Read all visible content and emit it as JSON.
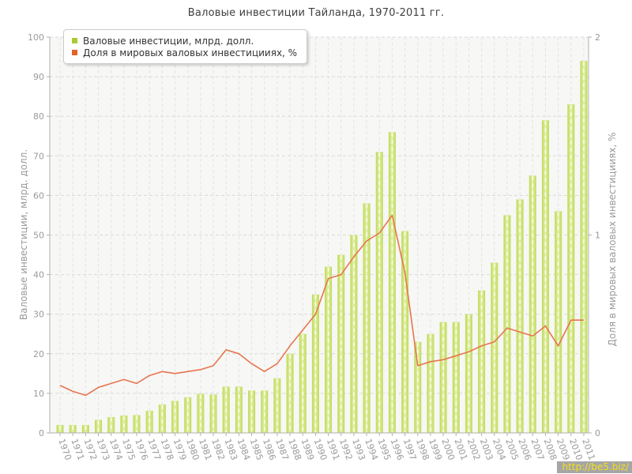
{
  "page": {
    "title": "Валовые инвестиции Тайланда, 1970-2011 гг.",
    "watermark": "http://be5.biz/"
  },
  "legend": {
    "position": "top-left",
    "items": [
      {
        "label": "Валовые инвестиции, млрд. долл.",
        "marker_color": "#a8cc30"
      },
      {
        "label": "Доля в мировых валовых инвестицииях, %",
        "marker_color": "#e2622b"
      }
    ]
  },
  "chart_data": {
    "type": "bar",
    "title": "Валовые инвестиции Тайланда, 1970-2011 гг.",
    "grid": "dashed",
    "categories": [
      "1970",
      "1971",
      "1972",
      "1973",
      "1974",
      "1975",
      "1976",
      "1977",
      "1978",
      "1979",
      "1980",
      "1981",
      "1982",
      "1983",
      "1984",
      "1985",
      "1986",
      "1987",
      "1988",
      "1989",
      "1990",
      "1991",
      "1992",
      "1993",
      "1994",
      "1995",
      "1996",
      "1997",
      "1998",
      "1999",
      "2000",
      "2001",
      "2002",
      "2003",
      "2004",
      "2005",
      "2006",
      "2007",
      "2008",
      "2009",
      "2010",
      "2011"
    ],
    "series": [
      {
        "name": "Валовые инвестиции, млрд. долл.",
        "type": "bar",
        "axis": "left",
        "color": "#bdda52",
        "values": [
          2,
          2,
          2,
          3.3,
          4,
          4.4,
          4.5,
          5.6,
          7.2,
          8.1,
          9,
          9.9,
          9.7,
          11.7,
          11.7,
          10.7,
          10.7,
          13.8,
          20,
          25,
          35,
          42,
          45,
          50,
          58,
          71,
          76,
          51,
          23,
          25,
          28,
          28,
          30,
          36,
          43,
          55,
          59,
          65,
          79,
          56,
          83,
          94
        ]
      },
      {
        "name": "Доля в мировых валовых инвестицииях, %",
        "type": "line",
        "axis": "right",
        "color": "#e8754f",
        "values": [
          0.24,
          0.21,
          0.19,
          0.23,
          0.25,
          0.27,
          0.25,
          0.29,
          0.31,
          0.3,
          0.31,
          0.32,
          0.34,
          0.42,
          0.4,
          0.35,
          0.31,
          0.35,
          0.44,
          0.52,
          0.6,
          0.78,
          0.8,
          0.89,
          0.97,
          1.01,
          1.1,
          0.81,
          0.34,
          0.36,
          0.37,
          0.39,
          0.41,
          0.44,
          0.46,
          0.53,
          0.51,
          0.49,
          0.54,
          0.44,
          0.57,
          0.57
        ]
      }
    ],
    "left_axis": {
      "label": "Валовые инвестиции, млрд. долл.",
      "min": 0,
      "max": 100,
      "ticks": [
        0,
        10,
        20,
        30,
        40,
        50,
        60,
        70,
        80,
        90,
        100
      ]
    },
    "right_axis": {
      "label": "Доля в мировых валовых инвестицииях, %",
      "min": 0,
      "max": 2,
      "ticks": [
        0,
        1,
        2
      ]
    }
  }
}
